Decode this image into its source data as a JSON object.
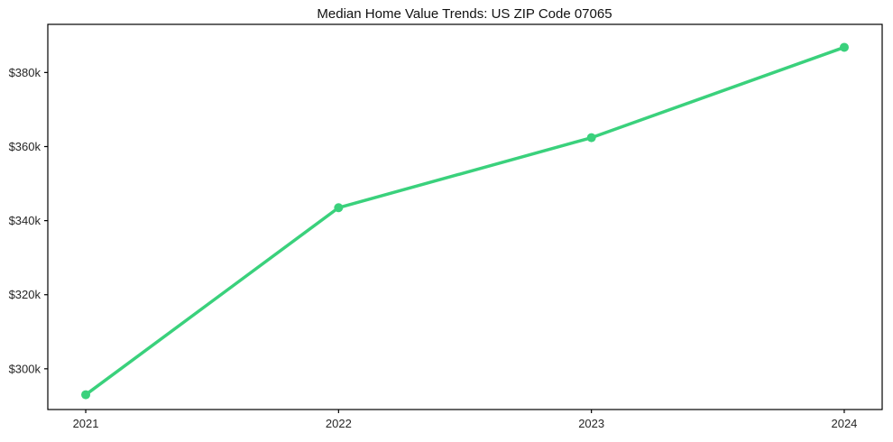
{
  "figure": {
    "background": "#ffffff"
  },
  "chart_data": {
    "type": "line",
    "title": "Median Home Value Trends: US ZIP Code 07065",
    "x": [
      2021,
      2022,
      2023,
      2024
    ],
    "x_tick_labels": [
      "2021",
      "2022",
      "2023",
      "2024"
    ],
    "values": [
      293000,
      343500,
      362400,
      386800
    ],
    "y_ticks": [
      {
        "value": 300000,
        "label": "$300k"
      },
      {
        "value": 320000,
        "label": "$320k"
      },
      {
        "value": 340000,
        "label": "$340k"
      },
      {
        "value": 360000,
        "label": "$360k"
      },
      {
        "value": 380000,
        "label": "$380k"
      }
    ],
    "xlim": [
      2020.85,
      2024.15
    ],
    "ylim": [
      289000,
      393000
    ],
    "xlabel": "",
    "ylabel": "",
    "grid": false,
    "legend": false,
    "line_color": "#3ad17c",
    "marker_color": "#3ad17c",
    "axis_color": "#000000",
    "tick_label_color": "#262626",
    "title_color": "#111111"
  }
}
